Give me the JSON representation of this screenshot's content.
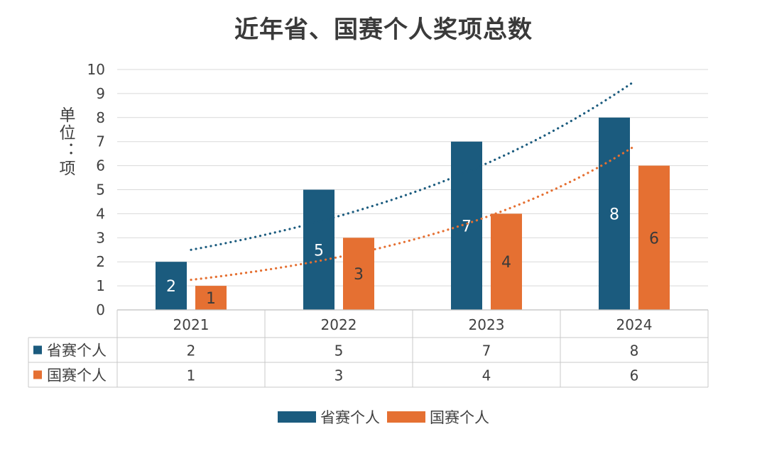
{
  "chart_data": {
    "type": "bar",
    "title": "近年省、国赛个人奖项总数",
    "ylabel": "单位：项",
    "xlabel": "",
    "categories": [
      "2021",
      "2022",
      "2023",
      "2024"
    ],
    "ylim": [
      0,
      10
    ],
    "yticks": [
      "0",
      "1",
      "2",
      "3",
      "4",
      "5",
      "6",
      "7",
      "8",
      "9",
      "10"
    ],
    "grid": true,
    "legend_position": "bottom",
    "data_table": true,
    "series": [
      {
        "name": "省赛个人",
        "values": [
          2,
          5,
          7,
          8
        ],
        "color": "#1b5b7e",
        "trendline": "exponential",
        "trendline_endpoints": [
          2.5,
          9.5
        ]
      },
      {
        "name": "国赛个人",
        "values": [
          1,
          3,
          4,
          6
        ],
        "color": "#e57032",
        "trendline": "exponential",
        "trendline_endpoints": [
          1.25,
          6.8
        ]
      }
    ]
  }
}
